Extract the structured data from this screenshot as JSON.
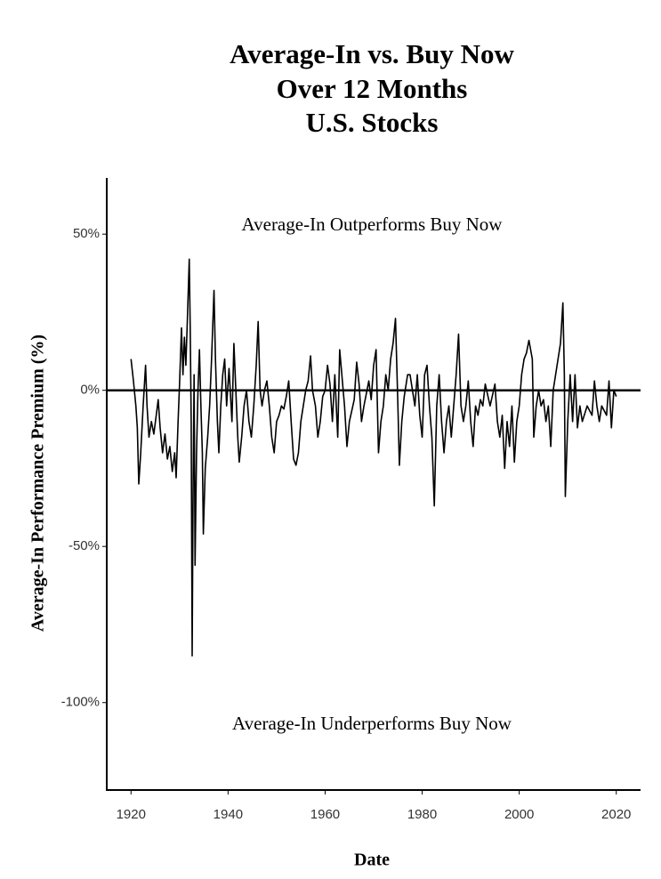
{
  "chart_data": {
    "type": "line",
    "title": [
      "Average-In vs. Buy Now",
      "Over 12 Months",
      "U.S. Stocks"
    ],
    "annotations": [
      "Average-In Outperforms Buy Now",
      "Average-In Underperforms Buy Now"
    ],
    "xlabel": "Date",
    "ylabel": "Average-In Performance Premium (%)",
    "color": "#000000",
    "hline": 0,
    "xlim": [
      1915,
      2025
    ],
    "xticks": [
      1920,
      1940,
      1960,
      1980,
      2000,
      2020
    ],
    "ylim": [
      -128,
      68
    ],
    "yticks": [
      {
        "value": 50,
        "label": "50%"
      },
      {
        "value": 0,
        "label": "0%"
      },
      {
        "value": -50,
        "label": "-50%"
      },
      {
        "value": -100,
        "label": "-100%"
      }
    ],
    "x": [
      1920.0,
      1920.5,
      1921.0,
      1921.3,
      1921.6,
      1922.0,
      1922.5,
      1923.0,
      1923.3,
      1923.7,
      1924.2,
      1924.7,
      1925.2,
      1925.6,
      1926.0,
      1926.5,
      1927.0,
      1927.5,
      1928.0,
      1928.5,
      1929.0,
      1929.3,
      1929.7,
      1930.0,
      1930.4,
      1930.7,
      1931.0,
      1931.3,
      1931.6,
      1932.0,
      1932.2,
      1932.4,
      1932.6,
      1932.8,
      1933.0,
      1933.2,
      1933.5,
      1933.8,
      1934.1,
      1934.4,
      1934.7,
      1934.9,
      1935.3,
      1935.8,
      1936.2,
      1936.6,
      1937.1,
      1937.4,
      1937.8,
      1938.1,
      1938.5,
      1938.9,
      1939.3,
      1939.7,
      1940.2,
      1940.8,
      1941.2,
      1941.6,
      1942.0,
      1942.3,
      1942.8,
      1943.3,
      1943.8,
      1944.3,
      1944.8,
      1945.3,
      1945.8,
      1946.2,
      1946.6,
      1947.0,
      1947.5,
      1948.0,
      1948.5,
      1949.0,
      1949.5,
      1950.0,
      1950.5,
      1951.0,
      1951.5,
      1952.0,
      1952.5,
      1953.0,
      1953.5,
      1954.0,
      1954.5,
      1955.0,
      1955.5,
      1956.0,
      1956.5,
      1957.0,
      1957.4,
      1958.0,
      1958.5,
      1959.0,
      1959.5,
      1960.0,
      1960.5,
      1961.0,
      1961.5,
      1962.0,
      1962.6,
      1963.0,
      1964.0,
      1964.5,
      1965.0,
      1966.0,
      1966.5,
      1967.0,
      1967.5,
      1968.0,
      1969.0,
      1969.5,
      1970.0,
      1970.5,
      1971.0,
      1971.5,
      1972.0,
      1972.5,
      1973.0,
      1973.5,
      1974.0,
      1974.5,
      1975.0,
      1975.3,
      1975.8,
      1976.3,
      1977.0,
      1977.5,
      1978.0,
      1978.5,
      1979.0,
      1979.5,
      1980.0,
      1980.5,
      1981.0,
      1981.5,
      1982.0,
      1982.5,
      1983.0,
      1983.5,
      1984.0,
      1984.5,
      1985.0,
      1985.5,
      1986.0,
      1986.5,
      1987.0,
      1987.5,
      1988.0,
      1988.5,
      1989.0,
      1989.5,
      1990.0,
      1990.5,
      1991.0,
      1991.5,
      1992.0,
      1992.5,
      1993.0,
      1994.0,
      1995.0,
      1995.5,
      1996.0,
      1996.5,
      1997.0,
      1997.5,
      1998.0,
      1998.5,
      1999.0,
      1999.5,
      2000.0,
      2000.5,
      2001.0,
      2001.5,
      2002.0,
      2002.7,
      2003.0,
      2003.5,
      2004.0,
      2004.5,
      2005.0,
      2005.5,
      2006.0,
      2006.5,
      2007.0,
      2007.5,
      2008.0,
      2008.5,
      2009.0,
      2009.3,
      2009.5,
      2010.0,
      2010.5,
      2011.0,
      2011.5,
      2012.0,
      2012.5,
      2013.0,
      2014.0,
      2015.0,
      2015.5,
      2016.0,
      2016.5,
      2017.0,
      2018.0,
      2018.5,
      2019.0,
      2019.5,
      2020.0
    ],
    "values": [
      10,
      3,
      -5,
      -12,
      -30,
      -20,
      -5,
      8,
      -5,
      -15,
      -10,
      -14,
      -8,
      -3,
      -12,
      -20,
      -14,
      -22,
      -18,
      -26,
      -20,
      -28,
      -10,
      2,
      20,
      5,
      17,
      8,
      22,
      42,
      20,
      -10,
      -85,
      -30,
      5,
      -56,
      -20,
      0,
      13,
      -5,
      -20,
      -46,
      -25,
      -15,
      -5,
      10,
      32,
      10,
      -10,
      -20,
      -5,
      5,
      10,
      -5,
      7,
      -10,
      15,
      0,
      -15,
      -23,
      -15,
      -5,
      0,
      -10,
      -15,
      -5,
      8,
      22,
      0,
      -5,
      0,
      3,
      -5,
      -15,
      -20,
      -10,
      -8,
      -5,
      -6,
      -2,
      3,
      -10,
      -22,
      -24,
      -20,
      -10,
      -5,
      0,
      3,
      11,
      0,
      -5,
      -15,
      -10,
      -2,
      0,
      8,
      2,
      -10,
      5,
      -15,
      13,
      -5,
      -18,
      -10,
      -3,
      9,
      2,
      -10,
      -5,
      3,
      -3,
      8,
      13,
      -20,
      -10,
      -5,
      5,
      0,
      10,
      15,
      23,
      -5,
      -24,
      -10,
      -2,
      5,
      5,
      0,
      -5,
      5,
      -8,
      -15,
      5,
      8,
      -5,
      -15,
      -37,
      -5,
      5,
      -10,
      -20,
      -10,
      -5,
      -15,
      -5,
      5,
      18,
      -5,
      -10,
      -5,
      3,
      -10,
      -18,
      -5,
      -8,
      -3,
      -5,
      2,
      -5,
      2,
      -10,
      -15,
      -8,
      -25,
      -10,
      -18,
      -5,
      -23,
      -10,
      -5,
      5,
      10,
      12,
      16,
      10,
      -15,
      -5,
      0,
      -5,
      -3,
      -10,
      -5,
      -18,
      0,
      5,
      10,
      15,
      28,
      5,
      -34,
      -10,
      5,
      -10,
      5,
      -12,
      -5,
      -10,
      -5,
      -8,
      3,
      -5,
      -10,
      -5,
      -8,
      3,
      -12,
      0,
      -2
    ]
  }
}
